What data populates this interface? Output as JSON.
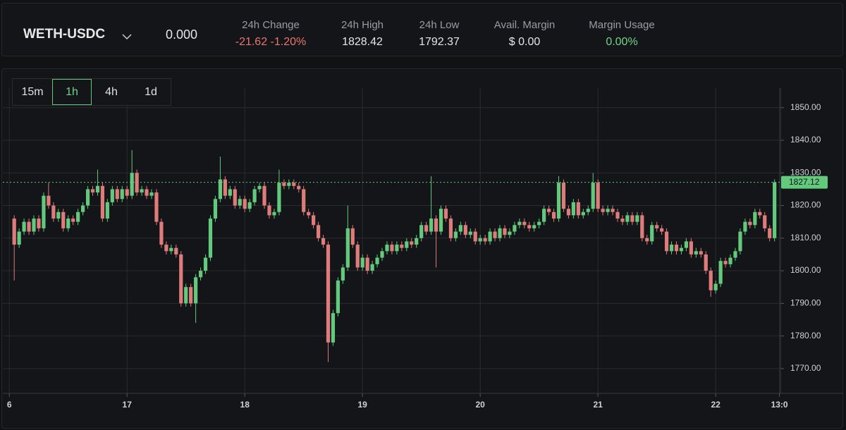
{
  "header": {
    "symbol": "WETH-USDC",
    "price": "0.000",
    "stats": [
      {
        "label": "24h Change",
        "value": "-21.62 -1.20%",
        "color": "#e8766e"
      },
      {
        "label": "24h High",
        "value": "1828.42",
        "color": "#e6e6e6"
      },
      {
        "label": "24h Low",
        "value": "1792.37",
        "color": "#e6e6e6"
      },
      {
        "label": "Avail. Margin",
        "value": "$ 0.00",
        "color": "#e6e6e6"
      },
      {
        "label": "Margin Usage",
        "value": "0.00%",
        "color": "#6fd688"
      }
    ]
  },
  "timeframes": {
    "options": [
      "15m",
      "1h",
      "4h",
      "1d"
    ],
    "active": 1
  },
  "chart_data": {
    "type": "candlestick",
    "x": [
      1,
      2,
      3,
      4,
      5,
      6,
      7,
      8,
      9,
      10,
      11,
      12,
      13,
      14,
      15,
      16,
      17,
      18,
      19,
      20,
      21,
      22,
      23,
      24,
      25,
      26,
      27,
      28,
      29,
      30,
      31,
      32,
      33,
      34,
      35,
      36,
      37,
      38,
      39,
      40,
      41,
      42,
      43,
      44,
      45,
      46,
      47,
      48,
      49,
      50,
      51,
      52,
      53,
      54,
      55,
      56,
      57,
      58,
      59,
      60,
      61,
      62,
      63,
      64,
      65,
      66,
      67,
      68,
      69,
      70,
      71,
      72,
      73,
      74,
      75,
      76,
      77,
      78,
      79,
      80,
      81,
      82,
      83,
      84,
      85,
      86,
      87,
      88,
      89,
      90,
      91,
      92,
      93,
      94,
      95,
      96,
      97,
      98,
      99,
      100,
      101,
      102,
      103,
      104,
      105,
      106,
      107,
      108,
      109,
      110,
      111,
      112,
      113,
      114,
      115,
      116,
      117,
      118,
      119,
      120,
      121,
      122,
      123,
      124,
      125,
      126,
      127,
      128,
      129,
      130,
      131,
      132,
      133,
      134,
      135,
      136,
      137,
      138,
      139,
      140,
      141,
      142,
      143,
      144,
      145,
      146,
      147,
      148,
      149,
      150,
      151,
      152,
      153,
      154,
      155,
      156
    ],
    "open": [
      1816,
      1808,
      1812,
      1815,
      1812,
      1816,
      1813,
      1823,
      1820,
      1816,
      1818,
      1813,
      1816,
      1815,
      1818,
      1820,
      1825,
      1824,
      1826,
      1816,
      1821,
      1825,
      1822,
      1825,
      1823,
      1830,
      1824,
      1825,
      1823,
      1824,
      1815,
      1808,
      1806,
      1807,
      1805,
      1790,
      1795,
      1790,
      1798,
      1800,
      1804,
      1816,
      1822,
      1828,
      1823,
      1825,
      1820,
      1822,
      1819,
      1821,
      1825,
      1826,
      1820,
      1817,
      1818,
      1827,
      1826,
      1827,
      1826,
      1825,
      1818,
      1817,
      1814,
      1810,
      1808,
      1778,
      1787,
      1797,
      1801,
      1813,
      1808,
      1801,
      1804,
      1800,
      1802,
      1804,
      1806,
      1808,
      1806,
      1808,
      1807,
      1809,
      1808,
      1810,
      1814,
      1812,
      1816,
      1812,
      1819,
      1816,
      1810,
      1812,
      1814,
      1811,
      1812,
      1809,
      1810,
      1809,
      1812,
      1810,
      1813,
      1811,
      1812,
      1814,
      1815,
      1814,
      1813,
      1814,
      1815,
      1819,
      1818,
      1816,
      1827,
      1819,
      1817,
      1821,
      1817,
      1818,
      1819,
      1827,
      1819,
      1818,
      1819,
      1818,
      1816,
      1815,
      1817,
      1815,
      1817,
      1810,
      1809,
      1814,
      1813,
      1812,
      1806,
      1808,
      1806,
      1807,
      1809,
      1805,
      1806,
      1805,
      1800,
      1794,
      1796,
      1803,
      1802,
      1804,
      1806,
      1812,
      1815,
      1814,
      1818,
      1817,
      1813,
      1810
    ],
    "high": [
      1817,
      1813,
      1816,
      1816,
      1817,
      1817,
      1824,
      1827,
      1821,
      1819,
      1819,
      1817,
      1817,
      1819,
      1821,
      1826,
      1826,
      1831,
      1827,
      1822,
      1826,
      1826,
      1826,
      1826,
      1837,
      1831,
      1826,
      1826,
      1825,
      1825,
      1816,
      1809,
      1808,
      1808,
      1806,
      1796,
      1796,
      1799,
      1801,
      1805,
      1817,
      1823,
      1835,
      1829,
      1826,
      1826,
      1823,
      1823,
      1822,
      1826,
      1827,
      1827,
      1821,
      1819,
      1831,
      1828,
      1828,
      1828,
      1827,
      1826,
      1819,
      1818,
      1815,
      1811,
      1809,
      1788,
      1798,
      1802,
      1820,
      1814,
      1809,
      1805,
      1805,
      1803,
      1805,
      1807,
      1809,
      1809,
      1809,
      1809,
      1810,
      1810,
      1811,
      1815,
      1815,
      1829,
      1817,
      1820,
      1820,
      1817,
      1813,
      1815,
      1815,
      1813,
      1813,
      1811,
      1811,
      1813,
      1813,
      1814,
      1814,
      1813,
      1815,
      1816,
      1816,
      1815,
      1815,
      1816,
      1820,
      1820,
      1819,
      1829,
      1828,
      1820,
      1822,
      1822,
      1819,
      1820,
      1830,
      1828,
      1820,
      1820,
      1820,
      1819,
      1817,
      1818,
      1818,
      1818,
      1818,
      1811,
      1815,
      1815,
      1814,
      1813,
      1809,
      1809,
      1808,
      1810,
      1810,
      1807,
      1807,
      1806,
      1801,
      1797,
      1804,
      1804,
      1805,
      1807,
      1813,
      1816,
      1816,
      1819,
      1819,
      1818,
      1814,
      1828
    ],
    "low": [
      1797,
      1807,
      1811,
      1811,
      1811,
      1812,
      1812,
      1819,
      1815,
      1815,
      1812,
      1812,
      1814,
      1814,
      1817,
      1819,
      1823,
      1823,
      1815,
      1815,
      1820,
      1821,
      1821,
      1822,
      1822,
      1823,
      1823,
      1822,
      1822,
      1814,
      1807,
      1805,
      1805,
      1804,
      1789,
      1789,
      1789,
      1784,
      1797,
      1799,
      1803,
      1815,
      1821,
      1822,
      1822,
      1819,
      1819,
      1818,
      1818,
      1820,
      1824,
      1819,
      1816,
      1816,
      1817,
      1825,
      1825,
      1825,
      1824,
      1817,
      1816,
      1813,
      1809,
      1807,
      1772,
      1777,
      1786,
      1796,
      1800,
      1807,
      1800,
      1800,
      1799,
      1799,
      1801,
      1803,
      1805,
      1805,
      1805,
      1806,
      1806,
      1807,
      1807,
      1809,
      1811,
      1811,
      1801,
      1811,
      1815,
      1809,
      1809,
      1811,
      1810,
      1810,
      1808,
      1808,
      1808,
      1808,
      1809,
      1809,
      1810,
      1810,
      1811,
      1813,
      1813,
      1812,
      1812,
      1813,
      1814,
      1817,
      1815,
      1815,
      1818,
      1816,
      1816,
      1816,
      1816,
      1817,
      1818,
      1818,
      1817,
      1817,
      1817,
      1815,
      1814,
      1814,
      1814,
      1814,
      1809,
      1808,
      1808,
      1812,
      1811,
      1805,
      1805,
      1805,
      1805,
      1806,
      1804,
      1804,
      1804,
      1799,
      1792,
      1793,
      1795,
      1801,
      1801,
      1803,
      1805,
      1811,
      1813,
      1813,
      1816,
      1812,
      1809,
      1809
    ],
    "close": [
      1808,
      1812,
      1815,
      1812,
      1816,
      1813,
      1823,
      1820,
      1816,
      1818,
      1813,
      1816,
      1815,
      1818,
      1820,
      1825,
      1824,
      1826,
      1816,
      1821,
      1825,
      1822,
      1825,
      1823,
      1830,
      1824,
      1825,
      1823,
      1824,
      1815,
      1808,
      1806,
      1807,
      1805,
      1790,
      1795,
      1790,
      1798,
      1800,
      1804,
      1816,
      1822,
      1828,
      1823,
      1825,
      1820,
      1822,
      1819,
      1821,
      1825,
      1826,
      1820,
      1817,
      1818,
      1827,
      1826,
      1827,
      1826,
      1825,
      1818,
      1817,
      1814,
      1810,
      1808,
      1778,
      1787,
      1797,
      1801,
      1813,
      1808,
      1801,
      1804,
      1800,
      1802,
      1804,
      1806,
      1808,
      1806,
      1808,
      1807,
      1809,
      1808,
      1810,
      1814,
      1812,
      1816,
      1812,
      1819,
      1816,
      1810,
      1812,
      1814,
      1811,
      1812,
      1809,
      1810,
      1809,
      1812,
      1810,
      1813,
      1811,
      1812,
      1814,
      1815,
      1814,
      1813,
      1814,
      1815,
      1819,
      1818,
      1816,
      1827,
      1819,
      1817,
      1821,
      1817,
      1818,
      1819,
      1827,
      1819,
      1818,
      1819,
      1818,
      1816,
      1815,
      1817,
      1815,
      1817,
      1810,
      1809,
      1814,
      1813,
      1812,
      1806,
      1808,
      1806,
      1807,
      1809,
      1805,
      1806,
      1805,
      1800,
      1794,
      1796,
      1803,
      1802,
      1804,
      1806,
      1812,
      1815,
      1814,
      1818,
      1817,
      1813,
      1810,
      1827.12
    ],
    "xlim": [
      -1.9,
      157.2
    ],
    "xticks": [
      {
        "value": 0,
        "label": "6"
      },
      {
        "value": 24,
        "label": "17"
      },
      {
        "value": 48,
        "label": "18"
      },
      {
        "value": 72,
        "label": "19"
      },
      {
        "value": 96,
        "label": "20"
      },
      {
        "value": 120,
        "label": "21"
      },
      {
        "value": 144,
        "label": "22"
      },
      {
        "value": 157,
        "label": "13:0"
      }
    ],
    "ylim": [
      1762.4,
      1856
    ],
    "yticks": [
      {
        "value": 1770,
        "label": "1770.00"
      },
      {
        "value": 1780,
        "label": "1780.00"
      },
      {
        "value": 1790,
        "label": "1790.00"
      },
      {
        "value": 1800,
        "label": "1800.00"
      },
      {
        "value": 1810,
        "label": "1810.00"
      },
      {
        "value": 1820,
        "label": "1820.00"
      },
      {
        "value": 1830,
        "label": "1830.00"
      },
      {
        "value": 1840,
        "label": "1840.00"
      },
      {
        "value": 1850,
        "label": "1850.00"
      }
    ],
    "last_price": 1827.12,
    "colors": {
      "up": "#62c97d",
      "down": "#de7b7b"
    },
    "grid": true
  }
}
